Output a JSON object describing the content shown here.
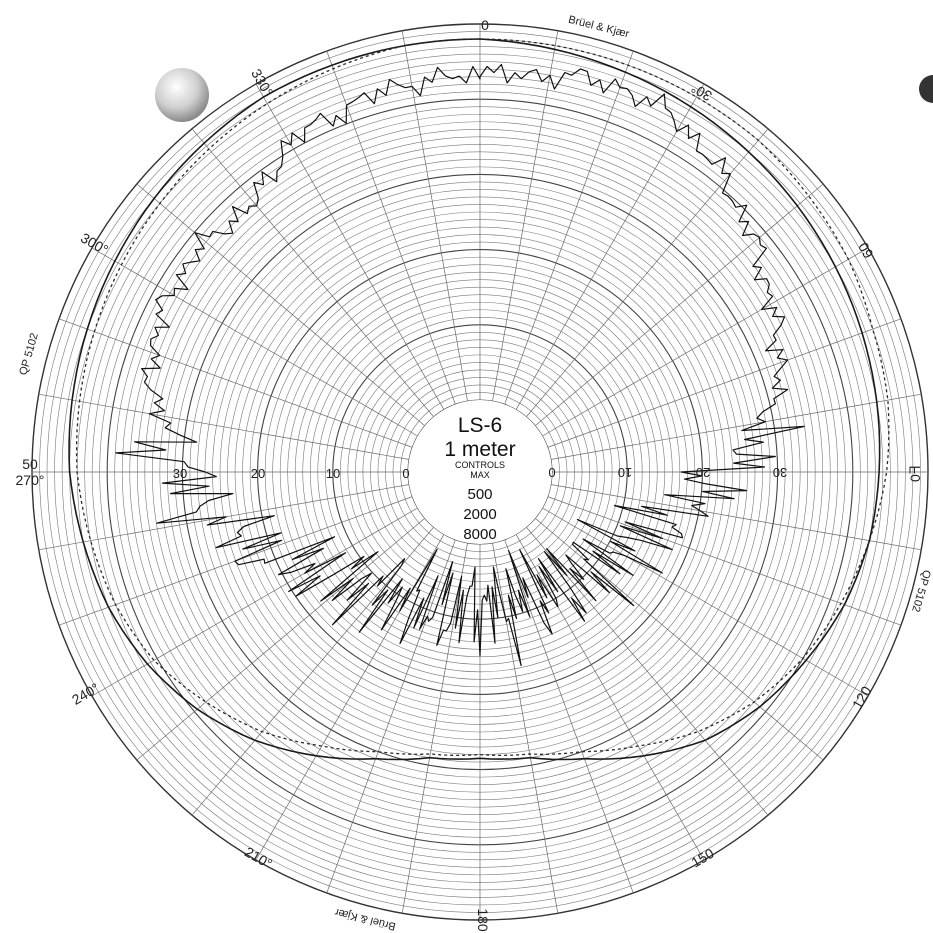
{
  "chart_data": {
    "type": "polar",
    "title": "LS-6",
    "subtitle": "1 meter",
    "legend_heading": "CONTROLS",
    "legend_subheading": "MAX",
    "legend_entries": [
      "500",
      "2000",
      "8000"
    ],
    "vendor_label": "Brüel & Kjær",
    "paper_code": "QP 5102",
    "angle_ticks_deg": [
      0,
      30,
      60,
      90,
      120,
      150,
      180,
      210,
      240,
      270,
      300,
      330
    ],
    "angle_tick_labels": {
      "top": "0",
      "right_30": "30°",
      "right_60": "60",
      "right_90": "0ᖷ",
      "right_120": "120",
      "right_150": "150",
      "bottom": "180",
      "left_210": "210°",
      "left_240": "240°",
      "left_270_top": "50",
      "left_270": "270°",
      "left_300": "300°",
      "left_330": "330°"
    },
    "radial_db_labels_left": [
      "30",
      "20",
      "10",
      "0"
    ],
    "radial_db_labels_right": [
      "0",
      "10",
      "20",
      "30"
    ],
    "radial_range_db": [
      0,
      50
    ],
    "series": [
      {
        "name": "500",
        "style": "solid",
        "angles_deg": [
          0,
          10,
          20,
          30,
          40,
          50,
          60,
          70,
          80,
          90,
          100,
          110,
          120,
          130,
          140,
          150,
          160,
          170,
          180,
          190,
          200,
          210,
          220,
          230,
          240,
          250,
          260,
          270,
          280,
          290,
          300,
          310,
          320,
          330,
          340,
          350
        ],
        "values_db": [
          48,
          47.5,
          47,
          46.5,
          46,
          45.5,
          45,
          44.5,
          44,
          43.5,
          43,
          42,
          40.5,
          39,
          37,
          34,
          31,
          29,
          28.5,
          29,
          31,
          34,
          37,
          39.5,
          41.5,
          43,
          44,
          45,
          45.5,
          46,
          46.5,
          47,
          47.5,
          48,
          48,
          48
        ]
      },
      {
        "name": "2000",
        "style": "dashed",
        "angles_deg": [
          0,
          10,
          20,
          30,
          40,
          50,
          60,
          70,
          80,
          90,
          100,
          110,
          120,
          130,
          140,
          150,
          160,
          170,
          180,
          190,
          200,
          210,
          220,
          230,
          240,
          250,
          260,
          270,
          280,
          290,
          300,
          310,
          320,
          330,
          340,
          350
        ],
        "values_db": [
          48,
          48,
          48,
          48,
          48,
          47.5,
          47,
          46,
          45.5,
          44.5,
          43,
          41.5,
          40,
          38,
          35.5,
          32.5,
          30,
          28.5,
          28,
          28.5,
          30,
          32.5,
          35.5,
          38,
          40.5,
          42,
          43,
          44,
          44.5,
          45,
          45.5,
          46,
          46.5,
          47,
          47.5,
          48
        ]
      },
      {
        "name": "8000",
        "style": "solid-jagged",
        "angles_deg": [
          0,
          10,
          20,
          30,
          40,
          50,
          60,
          70,
          80,
          90,
          100,
          110,
          120,
          130,
          140,
          150,
          160,
          170,
          180,
          190,
          200,
          210,
          220,
          230,
          240,
          250,
          260,
          270,
          280,
          290,
          300,
          310,
          320,
          330,
          340,
          350
        ],
        "values_db": [
          43,
          44,
          45,
          44,
          41,
          38,
          35,
          33,
          29,
          23,
          18,
          14,
          11,
          10,
          9,
          9,
          8,
          9,
          8,
          9,
          10,
          10,
          11,
          13,
          16,
          21,
          26,
          30,
          34,
          37,
          38,
          38,
          37,
          41,
          42,
          43
        ]
      }
    ],
    "grid": true
  }
}
